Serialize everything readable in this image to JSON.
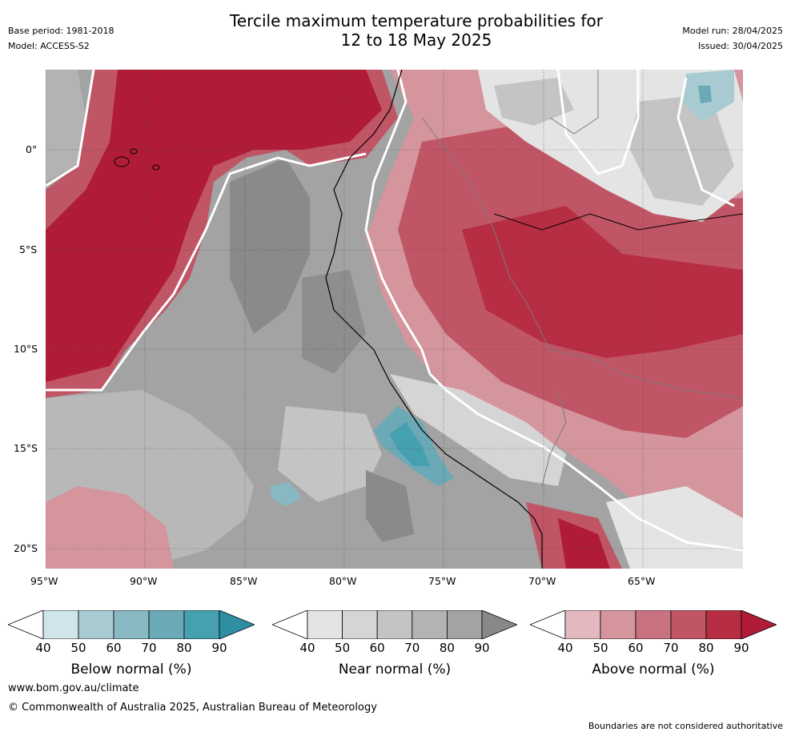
{
  "header": {
    "title_line1": "Tercile maximum temperature probabilities for",
    "title_line2": "12 to 18 May 2025",
    "base_period": "Base period: 1981-2018",
    "model": "Model: ACCESS-S2",
    "model_run": "Model run: 28/04/2025",
    "issued": "Issued: 30/04/2025"
  },
  "map": {
    "lat_ticks": [
      "0°",
      "5°S",
      "10°S",
      "15°S",
      "20°S"
    ],
    "lon_ticks": [
      "95°W",
      "90°W",
      "85°W",
      "80°W",
      "75°W",
      "70°W",
      "65°W"
    ]
  },
  "colorbars": [
    {
      "title": "Below normal (%)",
      "ticks": [
        "40",
        "50",
        "60",
        "70",
        "80",
        "90"
      ],
      "colors": [
        "#cfe5ea",
        "#a8cbd2",
        "#88b8c2",
        "#6aa9b5",
        "#45a0b0",
        "#2e8fa3"
      ]
    },
    {
      "title": "Near normal (%)",
      "ticks": [
        "40",
        "50",
        "60",
        "70",
        "80",
        "90"
      ],
      "colors": [
        "#e4e4e4",
        "#d5d5d5",
        "#c4c4c4",
        "#b3b3b3",
        "#a3a3a3",
        "#888888"
      ]
    },
    {
      "title": "Above normal (%)",
      "ticks": [
        "40",
        "50",
        "60",
        "70",
        "80",
        "90"
      ],
      "colors": [
        "#e3b9bf",
        "#d4959d",
        "#c97380",
        "#c05565",
        "#b72d43",
        "#b01c37"
      ]
    }
  ],
  "footer": {
    "url": "www.bom.gov.au/climate",
    "copyright": "© Commonwealth of Australia 2025, Australian Bureau of Meteorology",
    "disclaimer": "Boundaries are not considered authoritative"
  }
}
